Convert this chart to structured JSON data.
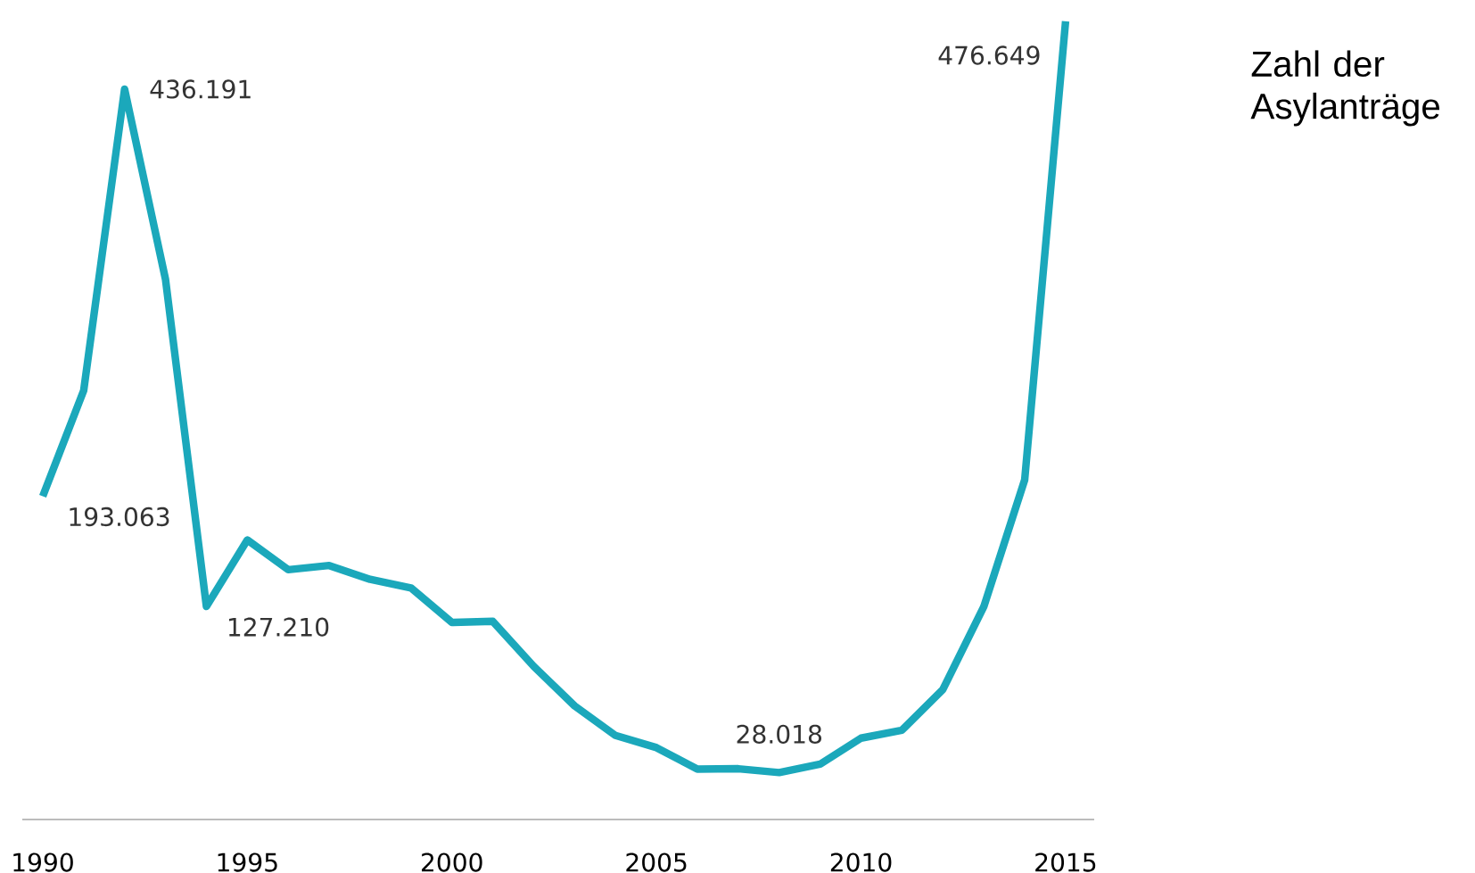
{
  "chart_data": {
    "type": "line",
    "title": "Zahl der Asylanträge",
    "x": [
      1990,
      1991,
      1992,
      1993,
      1994,
      1995,
      1996,
      1997,
      1998,
      1999,
      2000,
      2001,
      2002,
      2003,
      2004,
      2005,
      2006,
      2007,
      2008,
      2009,
      2010,
      2011,
      2012,
      2013,
      2014,
      2015
    ],
    "values": [
      193063,
      256112,
      436191,
      322599,
      127210,
      166951,
      149193,
      151700,
      143429,
      138319,
      117648,
      118306,
      91471,
      67848,
      50152,
      42908,
      30100,
      30303,
      28018,
      33033,
      48589,
      53347,
      77651,
      127023,
      202834,
      476649
    ],
    "value_labels": [
      "193.063",
      null,
      "436.191",
      null,
      "127.210",
      null,
      null,
      null,
      null,
      null,
      null,
      null,
      null,
      null,
      null,
      null,
      null,
      null,
      "28.018",
      null,
      null,
      null,
      null,
      null,
      null,
      "476.649"
    ],
    "color": "#1ba8bb",
    "xlim": [
      1989.5,
      2015.7
    ],
    "xticks": [
      1990,
      1995,
      2000,
      2005,
      2010,
      2015
    ],
    "grid": false,
    "marker": "none",
    "line_style": "solid"
  }
}
